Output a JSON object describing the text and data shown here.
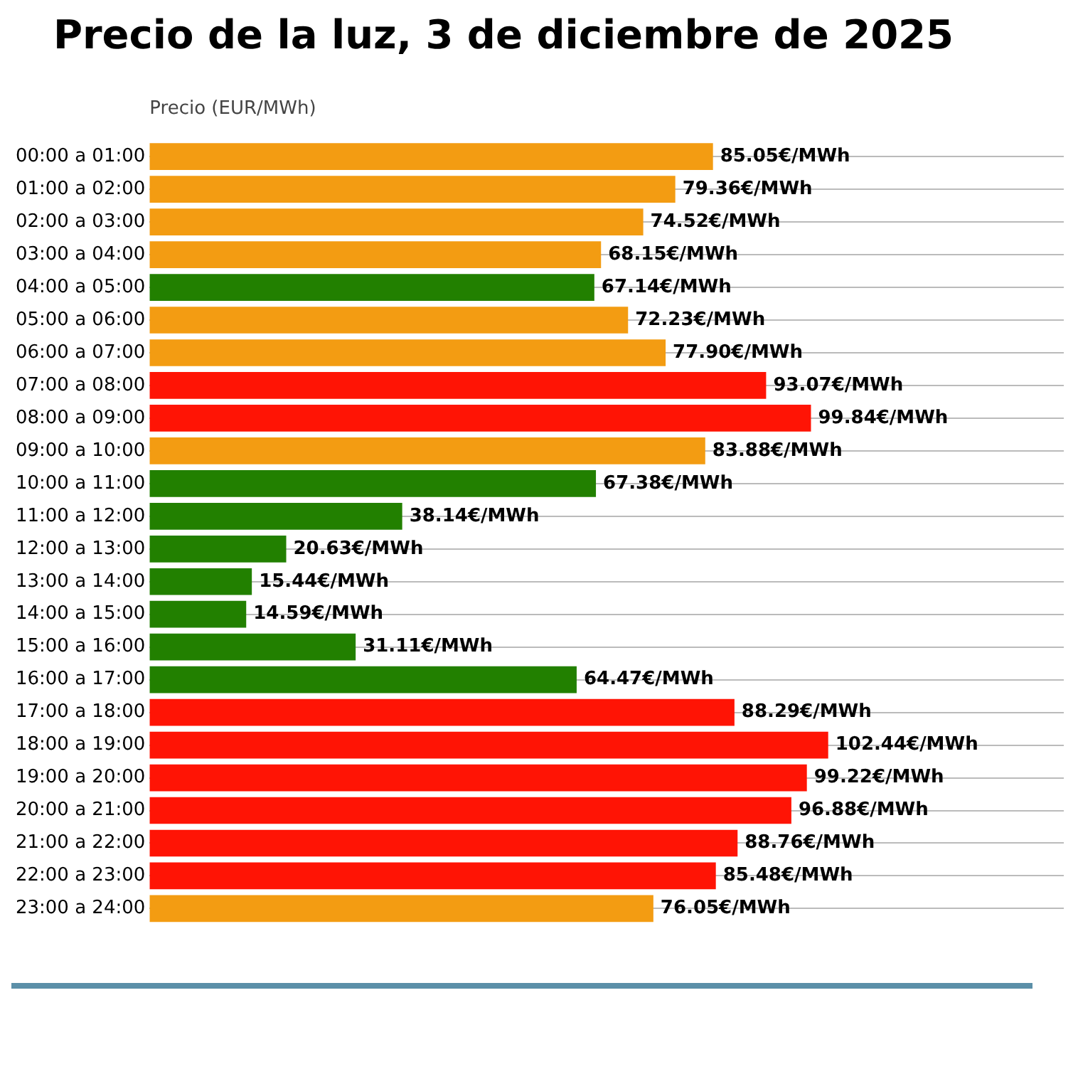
{
  "chart_data": {
    "type": "bar",
    "orientation": "horizontal",
    "title": "Precio de la luz, 3 de diciembre de 2025",
    "xlabel": "Precio (EUR/MWh)",
    "categories": [
      "00:00 a 01:00",
      "01:00 a 02:00",
      "02:00 a 03:00",
      "03:00 a 04:00",
      "04:00 a 05:00",
      "05:00 a 06:00",
      "06:00 a 07:00",
      "07:00 a 08:00",
      "08:00 a 09:00",
      "09:00 a 10:00",
      "10:00 a 11:00",
      "11:00 a 12:00",
      "12:00 a 13:00",
      "13:00 a 14:00",
      "14:00 a 15:00",
      "15:00 a 16:00",
      "16:00 a 17:00",
      "17:00 a 18:00",
      "18:00 a 19:00",
      "19:00 a 20:00",
      "20:00 a 21:00",
      "21:00 a 22:00",
      "22:00 a 23:00",
      "23:00 a 24:00"
    ],
    "values": [
      85.05,
      79.36,
      74.52,
      68.15,
      67.14,
      72.23,
      77.9,
      93.07,
      99.84,
      83.88,
      67.38,
      38.14,
      20.63,
      15.44,
      14.59,
      31.11,
      64.47,
      88.29,
      102.44,
      99.22,
      96.88,
      88.76,
      85.48,
      76.05
    ],
    "value_labels": [
      "85.05€/MWh",
      "79.36€/MWh",
      "74.52€/MWh",
      "68.15€/MWh",
      "67.14€/MWh",
      "72.23€/MWh",
      "77.90€/MWh",
      "93.07€/MWh",
      "99.84€/MWh",
      "83.88€/MWh",
      "67.38€/MWh",
      "38.14€/MWh",
      "20.63€/MWh",
      "15.44€/MWh",
      "14.59€/MWh",
      "31.11€/MWh",
      "64.47€/MWh",
      "88.29€/MWh",
      "102.44€/MWh",
      "99.22€/MWh",
      "96.88€/MWh",
      "88.76€/MWh",
      "85.48€/MWh",
      "76.05€/MWh"
    ],
    "colors": [
      "#f39c12",
      "#f39c12",
      "#f39c12",
      "#f39c12",
      "#228000",
      "#f39c12",
      "#f39c12",
      "#ff1405",
      "#ff1405",
      "#f39c12",
      "#228000",
      "#228000",
      "#228000",
      "#228000",
      "#228000",
      "#228000",
      "#228000",
      "#ff1405",
      "#ff1405",
      "#ff1405",
      "#ff1405",
      "#ff1405",
      "#ff1405",
      "#f39c12"
    ],
    "xlim": [
      0,
      138
    ],
    "grid": "y",
    "tick_labels": "y",
    "legend": false
  }
}
